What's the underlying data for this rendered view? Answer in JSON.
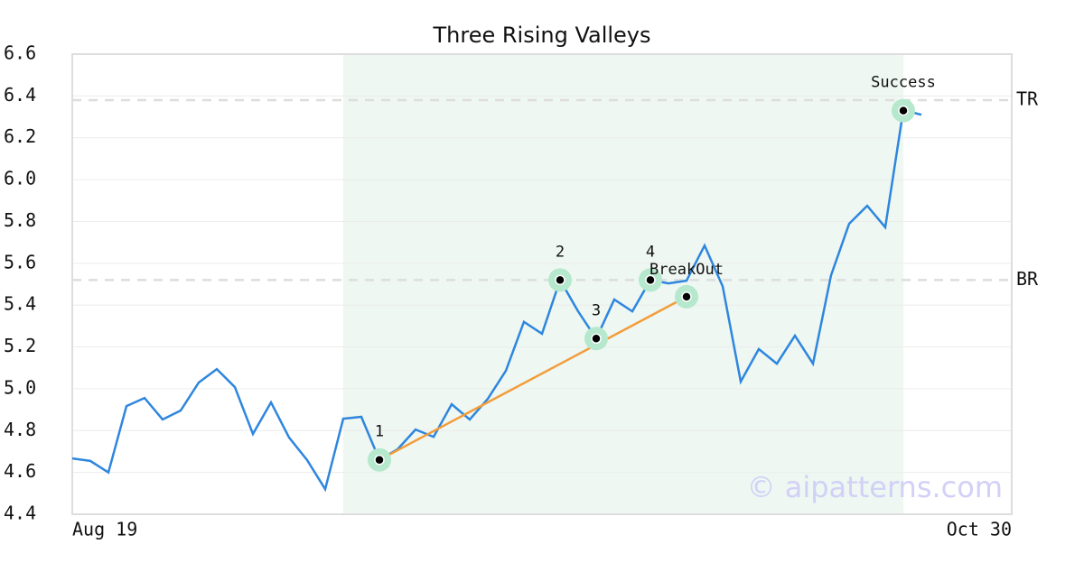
{
  "chart_data": {
    "type": "line",
    "title": "Three Rising Valleys",
    "x": [
      0,
      1,
      2,
      3,
      4,
      5,
      6,
      7,
      8,
      9,
      10,
      11,
      12,
      13,
      14,
      15,
      16,
      17,
      18,
      19,
      20,
      21,
      22,
      23,
      24,
      25,
      26,
      27,
      28,
      29,
      30,
      31,
      32,
      33,
      34,
      35,
      36,
      37,
      38,
      39,
      40,
      41,
      42,
      43,
      44,
      45,
      46,
      47
    ],
    "values": [
      4.667,
      4.655,
      4.6,
      4.917,
      4.956,
      4.853,
      4.896,
      5.03,
      5.094,
      5.008,
      4.784,
      4.935,
      4.767,
      4.659,
      4.52,
      4.857,
      4.866,
      4.66,
      4.71,
      4.805,
      4.77,
      4.926,
      4.853,
      4.952,
      5.086,
      5.32,
      5.263,
      5.52,
      5.37,
      5.24,
      5.427,
      5.37,
      5.52,
      5.504,
      5.517,
      5.685,
      5.49,
      5.034,
      5.19,
      5.12,
      5.254,
      5.12,
      5.543,
      5.789,
      5.875,
      5.772,
      6.333,
      6.31
    ],
    "color": "#2e86de",
    "xlim": [
      0,
      52
    ],
    "xticks": [
      {
        "value": 0,
        "label": "Aug 19"
      },
      {
        "value": 52,
        "label": "Oct 30"
      }
    ],
    "ylim": [
      4.4,
      6.6
    ],
    "yticks": [
      4.4,
      4.6,
      4.8,
      {
        "value": 5.0,
        "label": "5.0"
      },
      5.2,
      5.4,
      5.6,
      5.8,
      {
        "value": 6.0,
        "label": "6.0"
      },
      6.2,
      6.4,
      6.6
    ],
    "grid": true,
    "highlight": [
      15,
      46
    ],
    "levels": [
      {
        "label": "TR",
        "value": 6.38
      },
      {
        "label": "BR",
        "value": 5.52
      }
    ],
    "pattern_points": [
      {
        "label": "1",
        "x": 17,
        "y": 4.66
      },
      {
        "label": "2",
        "x": 27,
        "y": 5.52
      },
      {
        "label": "3",
        "x": 29,
        "y": 5.24
      },
      {
        "label": "4",
        "x": 32,
        "y": 5.52
      },
      {
        "label": "BreakOut",
        "x": 34,
        "y": 5.44
      },
      {
        "label": "Success",
        "x": 46,
        "y": 6.33
      }
    ],
    "trendline_color": "#f39c3a",
    "watermark": "© aipatterns.com"
  }
}
